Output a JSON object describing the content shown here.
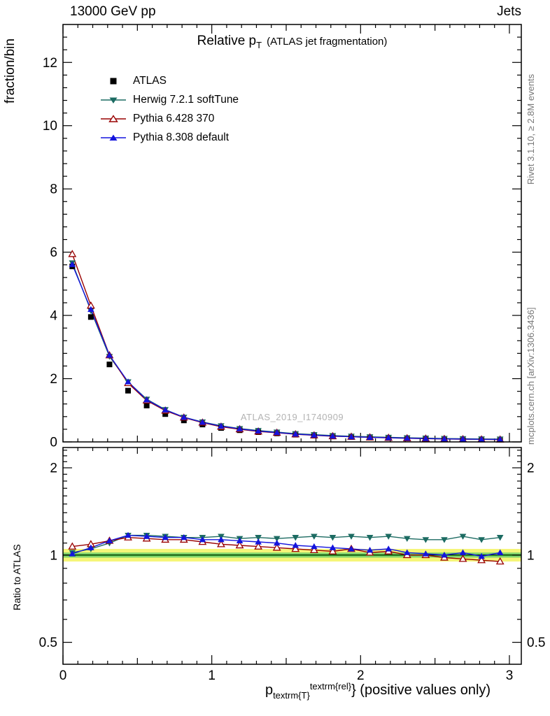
{
  "header": {
    "left": "13000 GeV pp",
    "right": "Jets"
  },
  "side_labels": {
    "top_right": "Rivet 3.1.10, ≥ 2.8M events",
    "bottom_right": "mcplots.cern.ch [arXiv:1306.3436]"
  },
  "watermark": "ATLAS_2019_I1740909",
  "chart_data": {
    "type": "line",
    "title_main": "Relative p",
    "title_sub": "T",
    "title_note": "(ATLAS jet fragmentation)",
    "ylabel_main": "fraction/bin",
    "ylabel_ratio": "Ratio to ATLAS",
    "xlabel": {
      "base": "p",
      "sub": "textrm{T}",
      "sup": "textrm{rel}",
      "rest": "} (positive values only)"
    },
    "xlim": [
      0,
      3.08
    ],
    "xticks": [
      0,
      1,
      2,
      3
    ],
    "ylim_main": [
      0,
      13.2
    ],
    "yticks_main": [
      0,
      2,
      4,
      6,
      8,
      10,
      12
    ],
    "ylim_ratio": [
      0.42,
      2.35
    ],
    "yticks_ratio": [
      0.5,
      1,
      2
    ],
    "ratio_scale": "log",
    "grid": false,
    "legend_position": "top-left-inside",
    "bin_width": 0.125,
    "x": [
      0.0625,
      0.1875,
      0.3125,
      0.4375,
      0.5625,
      0.6875,
      0.8125,
      0.9375,
      1.0625,
      1.1875,
      1.3125,
      1.4375,
      1.5625,
      1.6875,
      1.8125,
      1.9375,
      2.0625,
      2.1875,
      2.3125,
      2.4375,
      2.5625,
      2.6875,
      2.8125,
      2.9375
    ],
    "series": [
      {
        "name": "ATLAS",
        "marker": "square-filled",
        "color": "#000000",
        "draw_line": false,
        "values": [
          5.55,
          3.95,
          2.45,
          1.62,
          1.15,
          0.88,
          0.68,
          0.55,
          0.44,
          0.37,
          0.31,
          0.27,
          0.23,
          0.2,
          0.175,
          0.155,
          0.14,
          0.125,
          0.115,
          0.105,
          0.095,
          0.088,
          0.082,
          0.078
        ]
      },
      {
        "name": "Herwig 7.2.1 softTune",
        "marker": "triangle-down-filled",
        "color": "#1c6b62",
        "values": [
          5.66,
          4.15,
          2.7,
          1.9,
          1.35,
          1.02,
          0.78,
          0.63,
          0.51,
          0.42,
          0.36,
          0.31,
          0.26,
          0.23,
          0.2,
          0.18,
          0.161,
          0.145,
          0.131,
          0.119,
          0.107,
          0.102,
          0.093,
          0.09
        ],
        "ratio": [
          1.02,
          1.05,
          1.1,
          1.17,
          1.17,
          1.16,
          1.15,
          1.15,
          1.16,
          1.14,
          1.15,
          1.14,
          1.15,
          1.16,
          1.15,
          1.16,
          1.15,
          1.16,
          1.14,
          1.13,
          1.13,
          1.16,
          1.13,
          1.15
        ]
      },
      {
        "name": "Pythia 6.428 370",
        "marker": "triangle-up-open",
        "color": "#990000",
        "values": [
          5.94,
          4.31,
          2.74,
          1.86,
          1.31,
          0.99,
          0.77,
          0.61,
          0.48,
          0.4,
          0.33,
          0.29,
          0.24,
          0.208,
          0.18,
          0.163,
          0.143,
          0.129,
          0.115,
          0.105,
          0.093,
          0.085,
          0.079,
          0.074
        ],
        "ratio": [
          1.07,
          1.09,
          1.12,
          1.15,
          1.14,
          1.13,
          1.13,
          1.11,
          1.09,
          1.08,
          1.07,
          1.06,
          1.05,
          1.04,
          1.03,
          1.05,
          1.02,
          1.03,
          1.0,
          1.0,
          0.98,
          0.97,
          0.96,
          0.95
        ]
      },
      {
        "name": "Pythia 8.308 default",
        "marker": "triangle-up-filled",
        "color": "#1414dd",
        "values": [
          5.61,
          4.19,
          2.74,
          1.9,
          1.33,
          1.01,
          0.78,
          0.62,
          0.5,
          0.414,
          0.344,
          0.297,
          0.248,
          0.214,
          0.185,
          0.163,
          0.146,
          0.131,
          0.117,
          0.106,
          0.095,
          0.09,
          0.081,
          0.08
        ],
        "ratio": [
          1.01,
          1.06,
          1.12,
          1.17,
          1.16,
          1.15,
          1.15,
          1.13,
          1.13,
          1.12,
          1.11,
          1.1,
          1.08,
          1.07,
          1.06,
          1.05,
          1.04,
          1.05,
          1.02,
          1.01,
          1.0,
          1.02,
          0.99,
          1.02
        ]
      }
    ],
    "ratio_band": {
      "yellow": [
        0.95,
        1.05
      ],
      "green": [
        0.98,
        1.02
      ],
      "line": 1.0,
      "yellow_color": "#f5f578",
      "green_color": "#7fd36b",
      "line_color": "#007a00"
    }
  }
}
